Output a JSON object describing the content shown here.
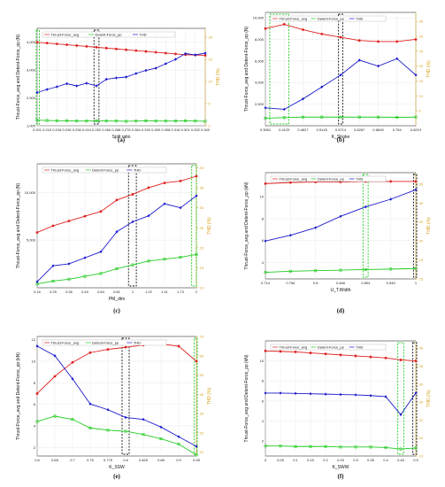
{
  "chart_data": [
    {
      "type": "line",
      "caption": "(a)",
      "xlabel": "Split ratio",
      "ylabel": "Thrust-Force_avg and Detent-Force_pp (N)",
      "ylabel_right": "THD (%)",
      "x_ticks": [
        "0.201",
        "0.210",
        "0.218",
        "0.226",
        "0.236",
        "0.244",
        "0.252",
        "0.260",
        "0.268",
        "0.276",
        "0.284",
        "0.292",
        "0.300",
        "0.308",
        "0.316",
        "0.324",
        "0.332",
        "0.340"
      ],
      "y_ticks": [
        "1,000",
        "2,000",
        "3,000",
        "4,000"
      ],
      "yr_ticks": [
        "0",
        "5",
        "10",
        "15",
        "20"
      ],
      "ylim": [
        1000,
        4500
      ],
      "yrlim": [
        0,
        22
      ],
      "x": [
        0.201,
        0.21,
        0.218,
        0.226,
        0.236,
        0.244,
        0.252,
        0.26,
        0.268,
        0.276,
        0.284,
        0.292,
        0.3,
        0.308,
        0.316,
        0.324,
        0.332,
        0.34
      ],
      "series": [
        {
          "name": "Thrust-Force_avg",
          "axis": "left",
          "color": "#e02020",
          "marker": "circle",
          "values": [
            4000,
            3970,
            3940,
            3910,
            3880,
            3850,
            3820,
            3790,
            3760,
            3730,
            3700,
            3670,
            3640,
            3610,
            3580,
            3550,
            3540,
            3530
          ]
        },
        {
          "name": "Detent-Force_pp",
          "axis": "left",
          "color": "#22cc22",
          "marker": "square",
          "values": [
            1200,
            1190,
            1180,
            1180,
            1170,
            1170,
            1180,
            1170,
            1170,
            1160,
            1170,
            1180,
            1170,
            1170,
            1170,
            1180,
            1170,
            1160
          ]
        },
        {
          "name": "THD",
          "axis": "right",
          "color": "#1a1acc",
          "marker": "diamond",
          "values": [
            7.5,
            8.2,
            8.8,
            9.5,
            9.0,
            9.6,
            9.0,
            10.5,
            10.8,
            11.0,
            11.8,
            12.5,
            13.0,
            14.0,
            15.0,
            16.3,
            16.0,
            16.4
          ]
        }
      ],
      "highlights": [
        {
          "x_from": 0.2,
          "x_to": 0.203,
          "color": "#22cc22"
        },
        {
          "x_from": 0.25,
          "x_to": 0.254,
          "color": "#111111"
        }
      ]
    },
    {
      "type": "line",
      "caption": "(b)",
      "xlabel": "K_Stroke",
      "ylabel": "Thrust-Force_avg and Detent-Force_pp (N)",
      "ylabel_right": "THD (%)",
      "x_ticks": [
        "0.3961",
        "0.4129",
        "0.4627",
        "0.5145",
        "0.5714",
        "0.6287",
        "0.6818",
        "0.754",
        "0.8219"
      ],
      "y_ticks": [
        "2,000",
        "4,000",
        "6,000",
        "8,000",
        "10,000"
      ],
      "yr_ticks": [
        "5",
        "10",
        "15",
        "20",
        "25",
        "30",
        "35"
      ],
      "ylim": [
        0,
        10500
      ],
      "yrlim": [
        0,
        38
      ],
      "x": [
        0.3961,
        0.4129,
        0.4627,
        0.5145,
        0.5714,
        0.6287,
        0.6818,
        0.754,
        0.8219
      ],
      "series": [
        {
          "name": "Thrust-Force_avg",
          "axis": "left",
          "color": "#e02020",
          "marker": "circle",
          "values": [
            9000,
            9400,
            8900,
            8500,
            8200,
            7900,
            7800,
            7800,
            8000
          ]
        },
        {
          "name": "Detent-Force_pp",
          "axis": "left",
          "color": "#22cc22",
          "marker": "square",
          "values": [
            700,
            750,
            800,
            800,
            800,
            800,
            800,
            780,
            800
          ]
        },
        {
          "name": "THD",
          "axis": "right",
          "color": "#1a1acc",
          "marker": "diamond",
          "values": [
            6,
            5.5,
            9,
            13,
            17,
            22,
            20,
            22.5,
            17
          ]
        }
      ],
      "highlights": [
        {
          "x_from": 0.4,
          "x_to": 0.425,
          "color": "#22cc22"
        },
        {
          "x_from": 0.565,
          "x_to": 0.578,
          "color": "#111111"
        }
      ]
    },
    {
      "type": "line",
      "caption": "(c)",
      "xlabel": "PM_dim",
      "ylabel": "Thrust-Force_avg and Detent-Force_pp (N)",
      "ylabel_right": "THD (%)",
      "x_ticks": [
        "0.16",
        "0.25",
        "0.36",
        "0.49",
        "0.64",
        "0.81",
        "1",
        "1.22",
        "1.41",
        "1.73",
        "2"
      ],
      "y_ticks": [
        "5,000",
        "10,000"
      ],
      "yr_ticks": [
        "10",
        "15",
        "20",
        "25",
        "30",
        "35",
        "40"
      ],
      "ylim": [
        0,
        13000
      ],
      "yrlim": [
        10,
        41
      ],
      "x": [
        0.16,
        0.25,
        0.36,
        0.49,
        0.64,
        0.81,
        1,
        1.22,
        1.41,
        1.73,
        2
      ],
      "series": [
        {
          "name": "Thrust-Force_avg",
          "axis": "left",
          "color": "#e02020",
          "marker": "circle",
          "values": [
            5800,
            6500,
            7000,
            7500,
            8000,
            9200,
            9800,
            10500,
            11000,
            11200,
            11700
          ]
        },
        {
          "name": "Detent-Force_pp",
          "axis": "left",
          "color": "#22cc22",
          "marker": "square",
          "values": [
            400,
            700,
            900,
            1200,
            1500,
            2000,
            2400,
            2800,
            3000,
            3200,
            3500
          ]
        },
        {
          "name": "THD",
          "axis": "right",
          "color": "#1a1acc",
          "marker": "diamond",
          "values": [
            11.5,
            15.5,
            16,
            17.5,
            19,
            24,
            26.5,
            28,
            31,
            30,
            33
          ]
        }
      ],
      "highlights": [
        {
          "x_from": 0.95,
          "x_to": 1.05,
          "color": "#111111"
        },
        {
          "x_from": 1.92,
          "x_to": 2.0,
          "color": "#22cc22"
        }
      ]
    },
    {
      "type": "line",
      "caption": "(d)",
      "xlabel": "U_T.Width",
      "ylabel": "Thrust-Force_avg and Detent-Force_pp (kN)",
      "ylabel_right": "THD (%)",
      "x_ticks": [
        "0.714",
        "0.756",
        "0.8",
        "0.846",
        "0.894",
        "0.945",
        "1"
      ],
      "y_ticks": [
        "4",
        "6",
        "8",
        "10"
      ],
      "yr_ticks": [
        "10",
        "15",
        "20",
        "25",
        "30",
        "35"
      ],
      "ylim": [
        2.5,
        12.2
      ],
      "yrlim": [
        10,
        38
      ],
      "x": [
        0.714,
        0.756,
        0.8,
        0.846,
        0.894,
        0.945,
        1
      ],
      "series": [
        {
          "name": "Thrust-Force_avg",
          "axis": "left",
          "color": "#e02020",
          "marker": "circle",
          "values": [
            11.2,
            11.3,
            11.35,
            11.35,
            11.4,
            11.4,
            11.4
          ]
        },
        {
          "name": "Detent-Force_pp",
          "axis": "left",
          "color": "#22cc22",
          "marker": "square",
          "values": [
            3.1,
            3.2,
            3.25,
            3.3,
            3.35,
            3.4,
            3.45
          ]
        },
        {
          "name": "THD",
          "axis": "right",
          "color": "#1a1acc",
          "marker": "diamond",
          "values": [
            20,
            21.5,
            23.5,
            26.5,
            29,
            31,
            33.5
          ]
        }
      ],
      "highlights": [
        {
          "x_from": 0.889,
          "x_to": 0.899,
          "color": "#22cc22"
        },
        {
          "x_from": 0.995,
          "x_to": 1.003,
          "color": "#111111"
        }
      ]
    },
    {
      "type": "line",
      "caption": "(e)",
      "xlabel": "K_SSW",
      "ylabel": "Thrust-Force_avg and Detent-Force_pp (kN)",
      "ylabel_right": "THD (%)",
      "x_ticks": [
        "0.6",
        "0.65",
        "0.7",
        "0.75",
        "0.775",
        "0.8",
        "0.825",
        "0.85",
        "0.9",
        "0.95"
      ],
      "x_pos": [
        0.6,
        0.65,
        0.7,
        0.75,
        0.775,
        0.8,
        0.825,
        0.85,
        0.9,
        0.95
      ],
      "y_ticks": [
        "2",
        "4",
        "6",
        "8",
        "10",
        "12"
      ],
      "yr_ticks": [
        "10",
        "20",
        "30",
        "40",
        "50",
        "60",
        "70"
      ],
      "ylim": [
        1.2,
        12.3
      ],
      "yrlim": [
        8,
        70
      ],
      "x": [
        0.6,
        0.65,
        0.7,
        0.75,
        0.775,
        0.8,
        0.825,
        0.85,
        0.9,
        0.95
      ],
      "series": [
        {
          "name": "Thrust-Force_avg",
          "axis": "left",
          "color": "#e02020",
          "marker": "circle",
          "values": [
            7,
            8.6,
            9.9,
            10.8,
            11.1,
            11.3,
            11.5,
            11.6,
            11.4,
            10
          ]
        },
        {
          "name": "Detent-Force_pp",
          "axis": "left",
          "color": "#22cc22",
          "marker": "square",
          "values": [
            4.4,
            4.9,
            4.6,
            3.8,
            3.6,
            3.5,
            3.2,
            2.8,
            2.3,
            1.3
          ]
        },
        {
          "name": "THD",
          "axis": "right",
          "color": "#1a1acc",
          "marker": "diamond",
          "values": [
            65,
            60,
            48,
            35,
            32,
            28,
            27,
            23,
            18,
            13
          ]
        }
      ],
      "highlights": [
        {
          "x_from": 0.795,
          "x_to": 0.805,
          "color": "#111111"
        },
        {
          "x_from": 0.945,
          "x_to": 0.952,
          "color": "#22cc22"
        }
      ]
    },
    {
      "type": "line",
      "caption": "(f)",
      "xlabel": "K_SWW",
      "ylabel": "Thrust-Force_avg and Detent-Force_pp (kN)",
      "ylabel_right": "THD (%)",
      "x_ticks": [
        "0",
        "0.05",
        "0.1",
        "0.15",
        "0.2",
        "0.25",
        "0.3",
        "0.35",
        "0.4",
        "0.45",
        "0.5"
      ],
      "y_ticks": [
        "2",
        "4",
        "6",
        "8",
        "10"
      ],
      "yr_ticks": [
        "10",
        "15",
        "20",
        "25",
        "30",
        "35",
        "40"
      ],
      "ylim": [
        0.5,
        12
      ],
      "yrlim": [
        10,
        42
      ],
      "x": [
        0,
        0.05,
        0.1,
        0.15,
        0.2,
        0.25,
        0.3,
        0.35,
        0.4,
        0.45,
        0.5
      ],
      "series": [
        {
          "name": "Thrust-Force_avg",
          "axis": "left",
          "color": "#e02020",
          "marker": "circle",
          "values": [
            11,
            10.95,
            10.9,
            10.8,
            10.7,
            10.6,
            10.5,
            10.4,
            10.3,
            10.1,
            10
          ]
        },
        {
          "name": "Detent-Force_pp",
          "axis": "left",
          "color": "#22cc22",
          "marker": "square",
          "values": [
            1.5,
            1.5,
            1.45,
            1.45,
            1.45,
            1.4,
            1.4,
            1.4,
            1.35,
            1.2,
            1.3
          ]
        },
        {
          "name": "THD",
          "axis": "right",
          "color": "#1a1acc",
          "marker": "diamond",
          "values": [
            27.5,
            27.5,
            27.4,
            27.3,
            27.2,
            27.1,
            27,
            26.8,
            26.5,
            21.5,
            27.5
          ]
        }
      ],
      "highlights": [
        {
          "x_from": 0.44,
          "x_to": 0.46,
          "color": "#22cc22"
        },
        {
          "x_from": 0.49,
          "x_to": 0.51,
          "color": "#111111"
        }
      ]
    }
  ],
  "panels_layout_note": "3 rows x 2 columns"
}
